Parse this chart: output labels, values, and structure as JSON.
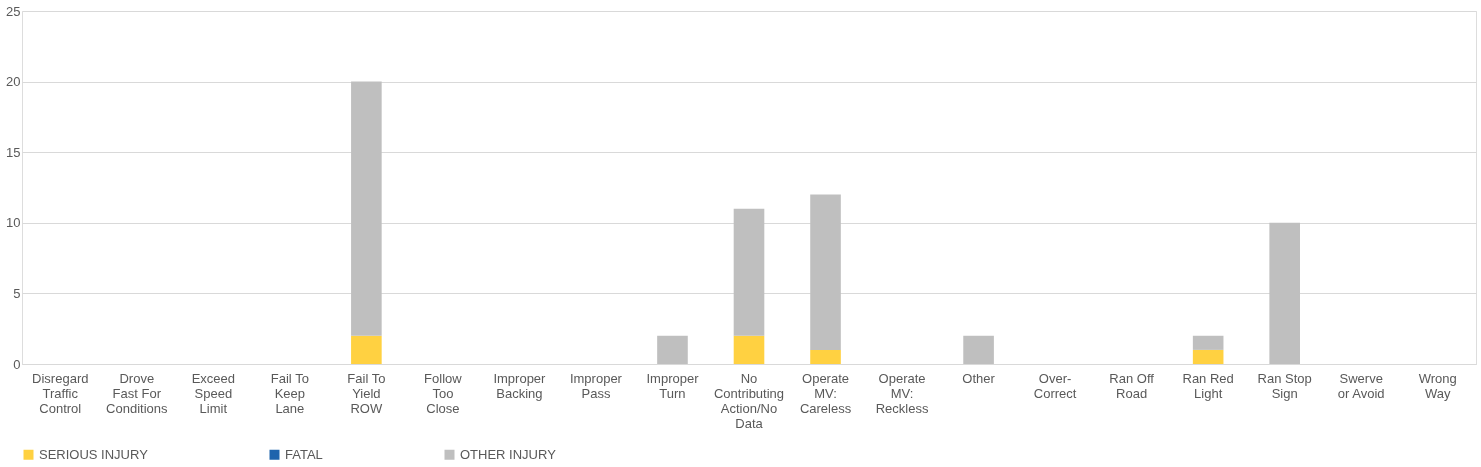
{
  "chart_data": {
    "type": "bar",
    "stacked": true,
    "categories": [
      "Disregard Traffic Control",
      "Drove Fast For Conditions",
      "Exceed Speed Limit",
      "Fail To Keep Lane",
      "Fail To Yield ROW",
      "Follow Too Close",
      "Improper Backing",
      "Improper Pass",
      "Improper Turn",
      "No Contributing Action/No Data",
      "Operate MV: Careless",
      "Operate MV: Reckless",
      "Other",
      "Over-Correct",
      "Ran Off Road",
      "Ran Red Light",
      "Ran Stop Sign",
      "Swerve or Avoid",
      "Wrong Way"
    ],
    "series": [
      {
        "name": "SERIOUS INJURY",
        "color": "#ffd141",
        "values": [
          0,
          0,
          0,
          0,
          2,
          0,
          0,
          0,
          0,
          2,
          1,
          0,
          0,
          0,
          0,
          1,
          0,
          0,
          0
        ]
      },
      {
        "name": "FATAL",
        "color": "#1f64ad",
        "values": [
          0,
          0,
          0,
          0,
          0,
          0,
          0,
          0,
          0,
          0,
          0,
          0,
          0,
          0,
          0,
          0,
          0,
          0,
          0
        ]
      },
      {
        "name": "OTHER INJURY",
        "color": "#bfbfbf",
        "values": [
          0,
          0,
          0,
          0,
          18,
          0,
          0,
          0,
          2,
          9,
          11,
          0,
          2,
          0,
          0,
          1,
          10,
          0,
          0
        ]
      }
    ],
    "ylim": [
      0,
      25
    ],
    "yticks": [
      0,
      5,
      10,
      15,
      20,
      25
    ],
    "grid": "y",
    "legend": "bottom"
  }
}
